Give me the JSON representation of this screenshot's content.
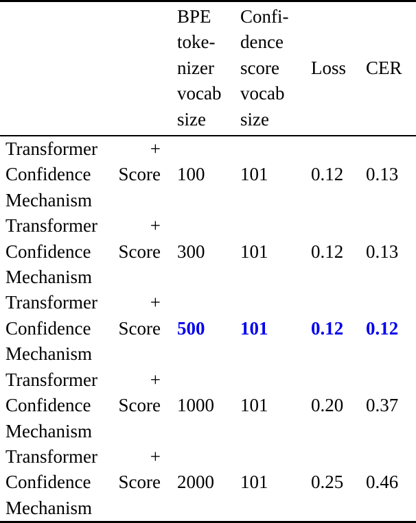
{
  "table": {
    "highlight_color": "#0000EE",
    "text_color": "#000000",
    "columns": [
      {
        "label": ""
      },
      {
        "label": "BPE\ntoke-\nnizer\nvocab\nsize"
      },
      {
        "label": "Confi-\ndence\nscore\nvocab\nsize"
      },
      {
        "label": "Loss"
      },
      {
        "label": "CER"
      }
    ],
    "rows": [
      {
        "label": "Transformer + Confidence Score Mechanism",
        "bpe_vocab": "100",
        "conf_vocab": "101",
        "loss": "0.12",
        "cer": "0.13",
        "highlight": false
      },
      {
        "label": "Transformer + Confidence Score Mechanism",
        "bpe_vocab": "300",
        "conf_vocab": "101",
        "loss": "0.12",
        "cer": "0.13",
        "highlight": false
      },
      {
        "label": "Transformer + Confidence Score Mechanism",
        "bpe_vocab": "500",
        "conf_vocab": "101",
        "loss": "0.12",
        "cer": "0.12",
        "highlight": true
      },
      {
        "label": "Transformer + Confidence Score Mechanism",
        "bpe_vocab": "1000",
        "conf_vocab": "101",
        "loss": "0.20",
        "cer": "0.37",
        "highlight": false
      },
      {
        "label": "Transformer + Confidence Score Mechanism",
        "bpe_vocab": "2000",
        "conf_vocab": "101",
        "loss": "0.25",
        "cer": "0.46",
        "highlight": false
      }
    ]
  }
}
